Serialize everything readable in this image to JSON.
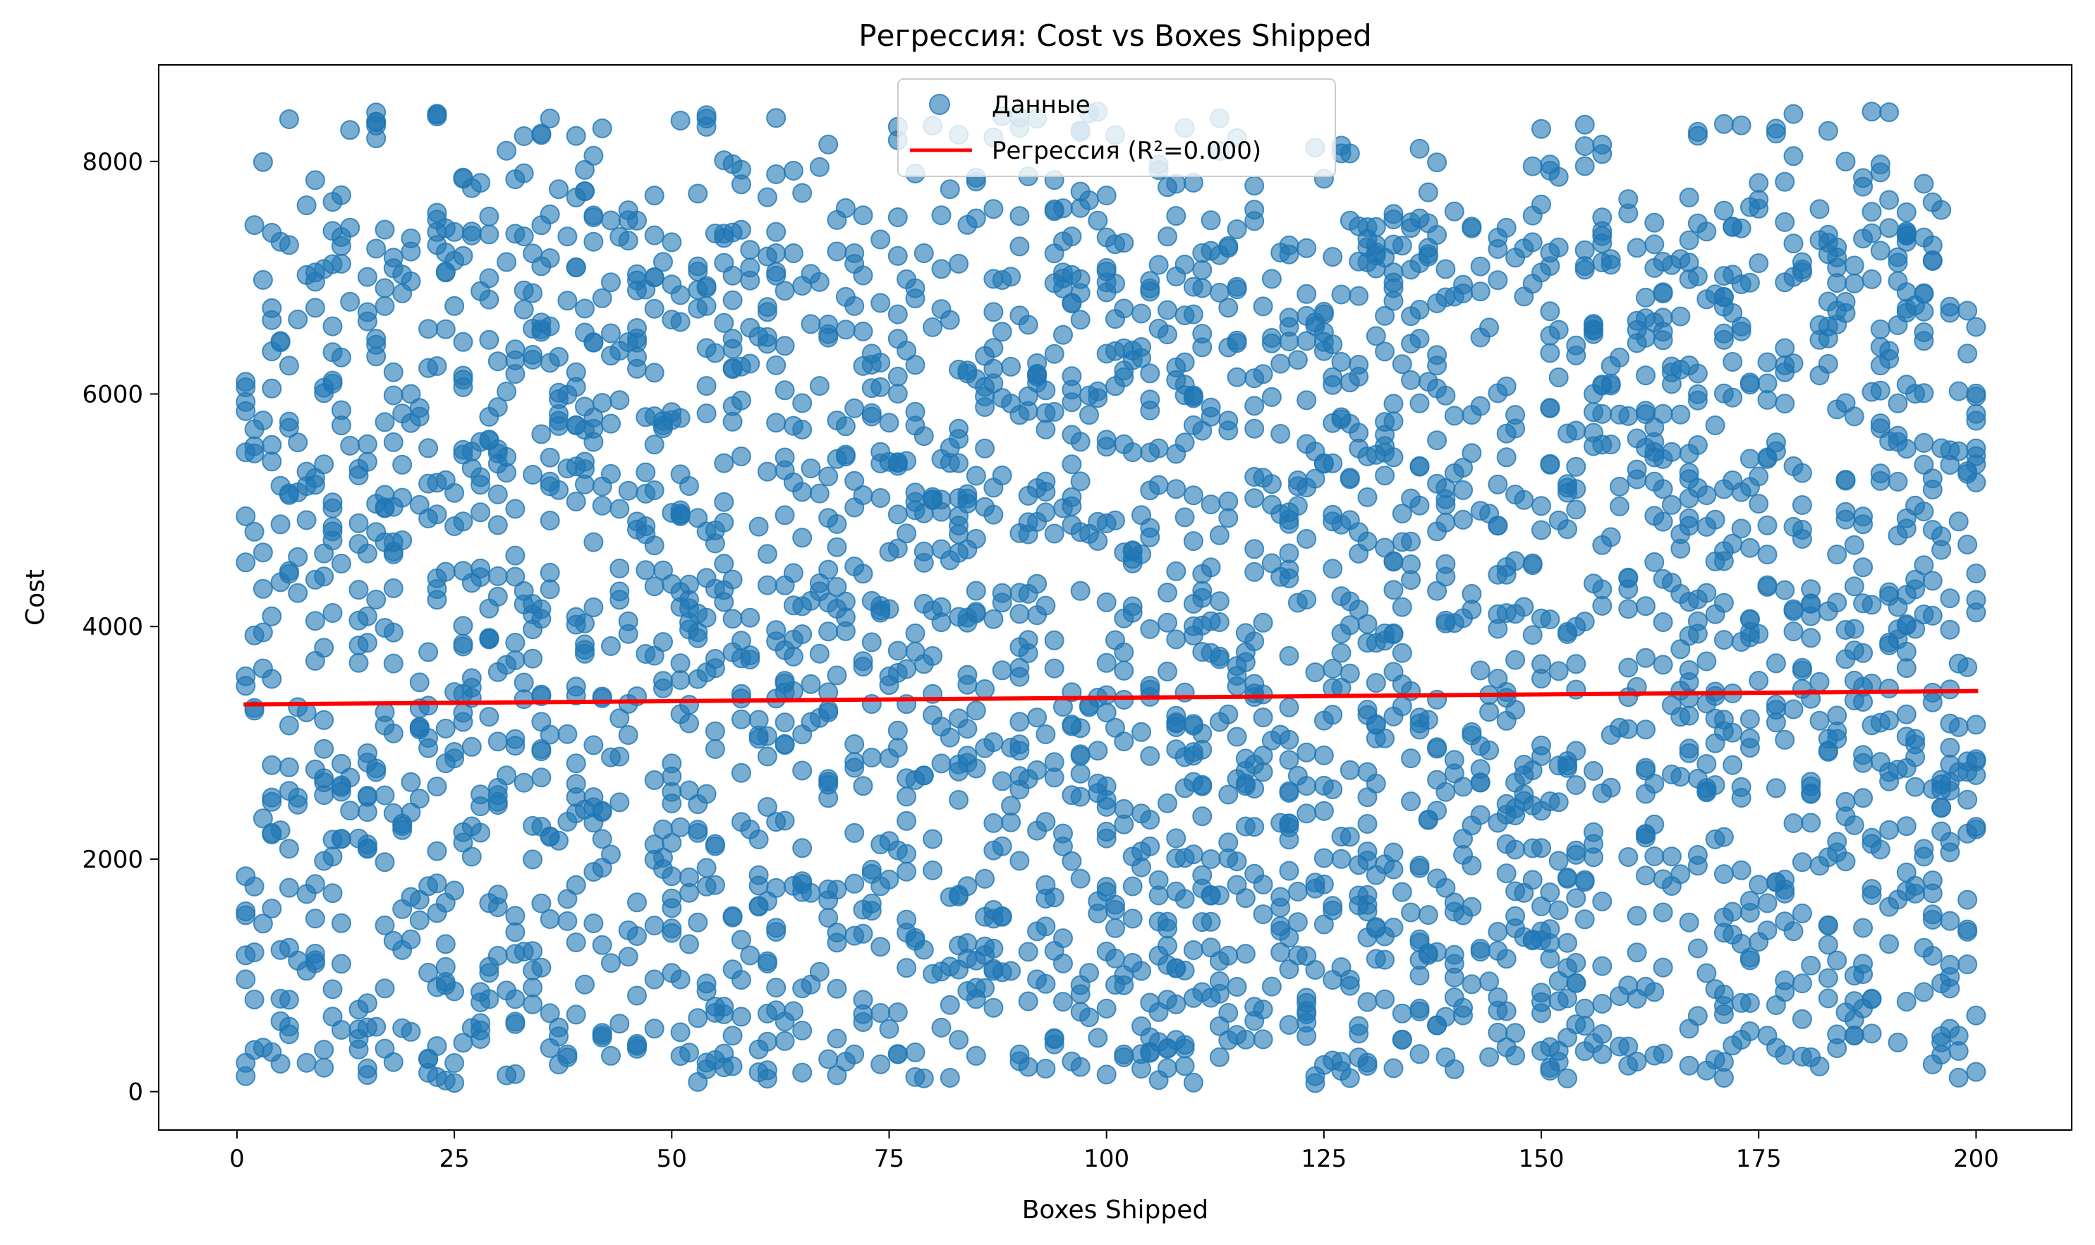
{
  "chart_data": {
    "type": "scatter",
    "title": "Регрессия: Cost vs Boxes Shipped",
    "xlabel": "Boxes Shipped",
    "ylabel": "Cost",
    "xlim": [
      -9,
      211
    ],
    "ylim": [
      -330,
      8830
    ],
    "xticks": [
      0,
      25,
      50,
      75,
      100,
      125,
      150,
      175,
      200
    ],
    "yticks": [
      0,
      2000,
      4000,
      6000,
      8000
    ],
    "xtick_labels": [
      "0",
      "25",
      "50",
      "75",
      "100",
      "125",
      "150",
      "175",
      "200"
    ],
    "ytick_labels": [
      "0",
      "2000",
      "4000",
      "6000",
      "8000"
    ],
    "grid": false,
    "legend_position": "top-center",
    "series": [
      {
        "name": "Данные",
        "kind": "scatter",
        "color": "#1f77b4",
        "opacity": 0.6,
        "distribution": {
          "n_points": 3000,
          "x_range": [
            1,
            200
          ],
          "y_range": [
            70,
            8430
          ],
          "seed": 7
        }
      },
      {
        "name": "Регрессия (R²=0.000)",
        "kind": "line",
        "color": "#ff0000",
        "x": [
          1,
          200
        ],
        "y": [
          3330,
          3445
        ]
      }
    ]
  }
}
